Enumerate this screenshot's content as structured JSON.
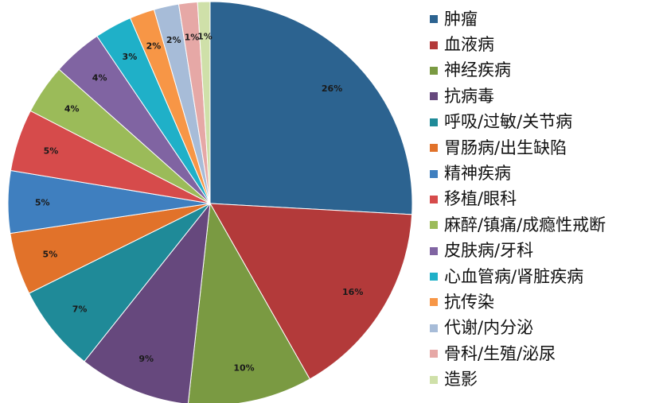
{
  "chart_data": {
    "type": "pie",
    "title": "",
    "legend_position": "right",
    "slices": [
      {
        "label": "肿瘤",
        "value": 26,
        "value_label": "26%",
        "color": "#2c6390"
      },
      {
        "label": "血液病",
        "value": 16,
        "value_label": "16%",
        "color": "#b33a3a"
      },
      {
        "label": "神经疾病",
        "value": 10,
        "value_label": "10%",
        "color": "#7a9a42"
      },
      {
        "label": "抗病毒",
        "value": 9,
        "value_label": "9%",
        "color": "#66487d"
      },
      {
        "label": "呼吸/过敏/关节病",
        "value": 7,
        "value_label": "7%",
        "color": "#1f8a98"
      },
      {
        "label": "胃肠病/出生缺陷",
        "value": 5,
        "value_label": "5%",
        "color": "#e1722a"
      },
      {
        "label": "精神疾病",
        "value": 5,
        "value_label": "5%",
        "color": "#3f7fbf"
      },
      {
        "label": "移植/眼科",
        "value": 5,
        "value_label": "5%",
        "color": "#d64b4b"
      },
      {
        "label": "麻醉/镇痛/成瘾性戒断",
        "value": 4,
        "value_label": "4%",
        "color": "#9bbb59"
      },
      {
        "label": "皮肤病/牙科",
        "value": 4,
        "value_label": "4%",
        "color": "#8064a2"
      },
      {
        "label": "心血管病/肾脏疾病",
        "value": 3,
        "value_label": "3%",
        "color": "#1fb0c8"
      },
      {
        "label": "抗传染",
        "value": 2,
        "value_label": "2%",
        "color": "#f79646"
      },
      {
        "label": "代谢/内分泌",
        "value": 2,
        "value_label": "2%",
        "color": "#a7bcd8"
      },
      {
        "label": "骨科/生殖/泌尿",
        "value": 1.5,
        "value_label": "1%",
        "color": "#e6a8a6"
      },
      {
        "label": "造影",
        "value": 1,
        "value_label": "1%",
        "color": "#cfe0a9"
      }
    ]
  }
}
